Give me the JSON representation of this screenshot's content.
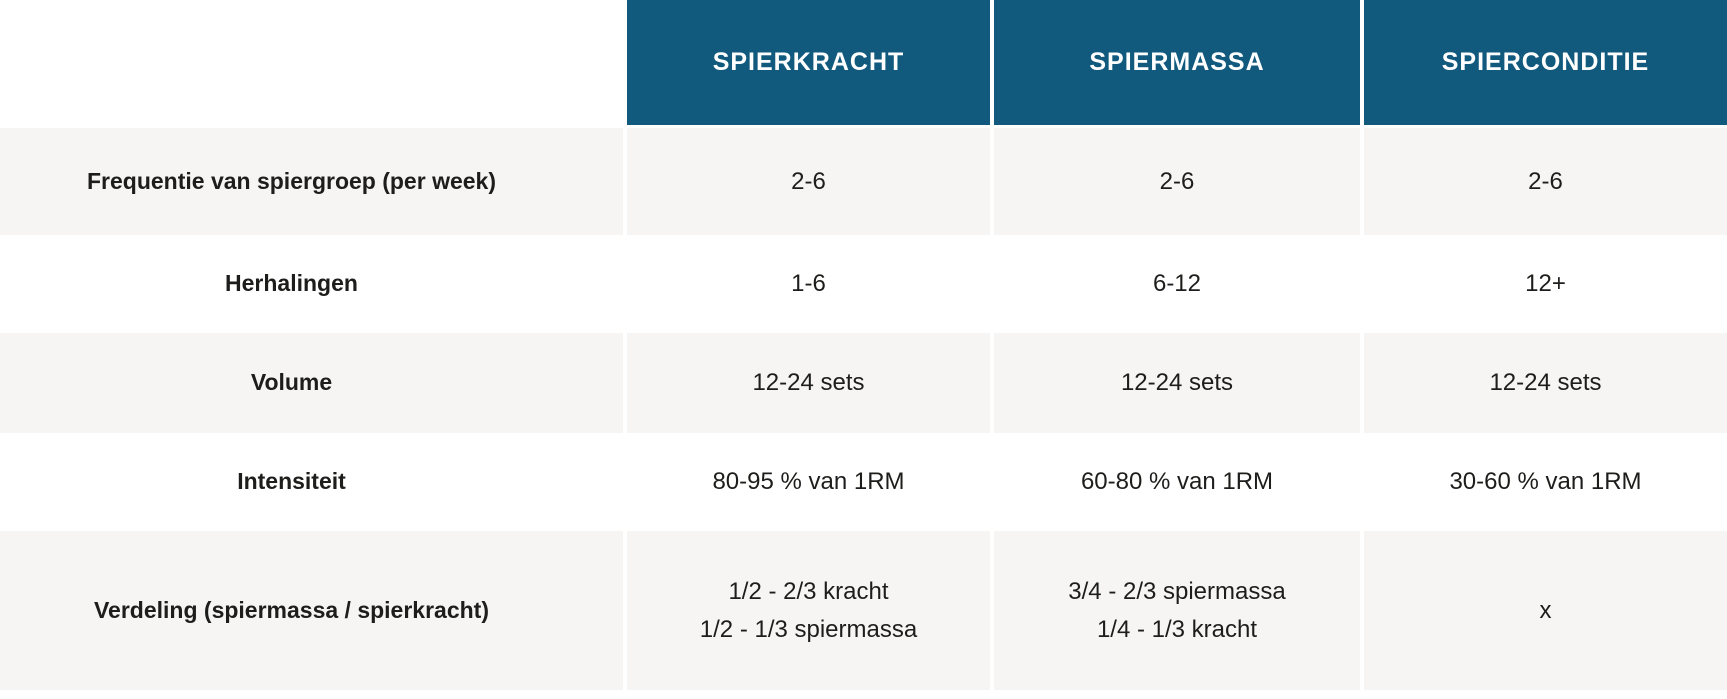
{
  "chart_data": {
    "type": "table",
    "columns": [
      "SPIERKRACHT",
      "SPIERMASSA",
      "SPIERCONDITIE"
    ],
    "corner_label": "",
    "rows": [
      {
        "label": "Frequentie van spiergroep (per week)",
        "values": [
          "2-6",
          "2-6",
          "2-6"
        ]
      },
      {
        "label": "Herhalingen",
        "values": [
          "1-6",
          "6-12",
          "12+"
        ]
      },
      {
        "label": "Volume",
        "values": [
          "12-24 sets",
          "12-24 sets",
          "12-24 sets"
        ]
      },
      {
        "label": "Intensiteit",
        "values": [
          "80-95 % van 1RM",
          "60-80 % van 1RM",
          "30-60 % van 1RM"
        ]
      },
      {
        "label": "Verdeling (spiermassa / spierkracht)",
        "values": [
          "1/2 - 2/3 kracht\n1/2 - 1/3 spiermassa",
          "3/4 - 2/3 spiermassa\n1/4 - 1/3 kracht",
          "x"
        ]
      }
    ],
    "layout": {
      "legend": "none",
      "grid": "striped-rows",
      "header_position": "top"
    }
  },
  "colors": {
    "header_bg": "#115a7e",
    "header_text": "#ffffff",
    "row_stripe_bg": "#f6f5f3",
    "body_text": "#1d1d1b",
    "page_bg": "#ffffff"
  }
}
